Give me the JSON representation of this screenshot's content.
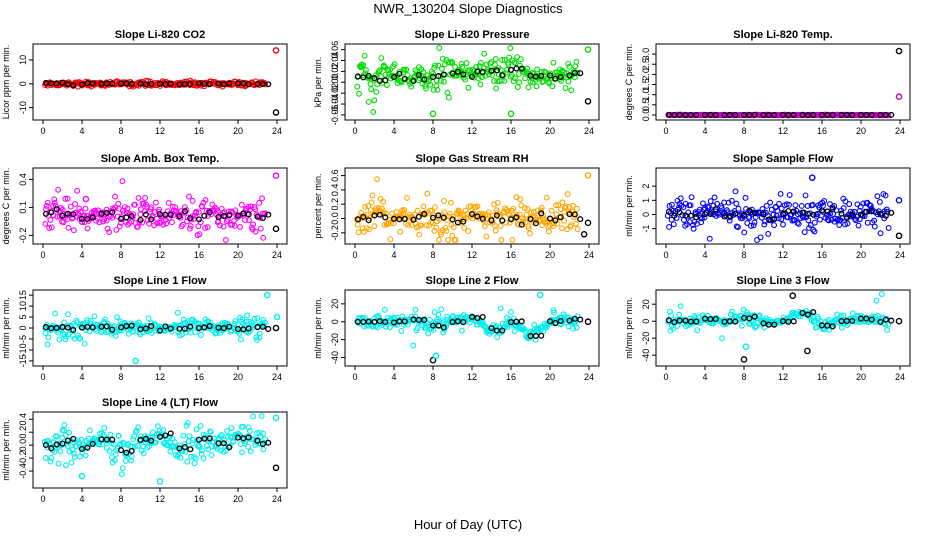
{
  "figure": {
    "title": "NWR_130204  Slope Diagnostics",
    "xlabel": "Hour of Day (UTC)"
  },
  "chart_data": [
    {
      "type": "scatter",
      "title": "Slope Li-820 CO2",
      "ylabel": "Licor ppm per min.",
      "color": "#ff0000",
      "xlim": [
        0,
        24
      ],
      "xticks": [
        0,
        4,
        8,
        12,
        16,
        20,
        24
      ],
      "ylim": [
        -13.5,
        15
      ],
      "yticks": [
        -10,
        0,
        10
      ],
      "ytick_labels": [
        "-10",
        "0",
        "10"
      ],
      "noise": [
        0.5,
        0,
        0,
        0
      ],
      "median_pts": [
        [
          0.3,
          0
        ],
        [
          2,
          0
        ],
        [
          4,
          0
        ],
        [
          6,
          0
        ],
        [
          8,
          0
        ],
        [
          10,
          0
        ],
        [
          12,
          0
        ],
        [
          14,
          0
        ],
        [
          16,
          0
        ],
        [
          18,
          0
        ],
        [
          20,
          0
        ],
        [
          22,
          0
        ]
      ],
      "extremes": [
        {
          "x": 23.9,
          "y": 14,
          "color": "#ff0000"
        },
        {
          "x": 23.9,
          "y": -12,
          "color": "#000000"
        }
      ]
    },
    {
      "type": "scatter",
      "title": "Slope Li-820 Pressure",
      "ylabel": "kPa per min.",
      "color": "#00dd00",
      "xlim": [
        0,
        24
      ],
      "xticks": [
        0,
        4,
        8,
        12,
        16,
        20,
        24
      ],
      "ylim": [
        -0.062,
        0.063
      ],
      "yticks": [
        -0.06,
        -0.04,
        -0.02,
        0,
        0.02,
        0.04,
        0.06
      ],
      "ytick_labels": [
        "-0.06",
        "-0.04",
        "-0.02",
        "0.00",
        "0.02",
        "0.04",
        "0.06"
      ],
      "noise": [
        0.008,
        0.01,
        0.6,
        0.025
      ],
      "median_pts": [
        [
          0.3,
          0.01
        ],
        [
          2,
          0.005
        ],
        [
          4,
          0.01
        ],
        [
          6,
          0.008
        ],
        [
          8,
          0.012
        ],
        [
          10,
          0.02
        ],
        [
          12,
          0.015
        ],
        [
          14,
          0.02
        ],
        [
          16,
          0.025
        ],
        [
          18,
          0.01
        ],
        [
          20,
          0.005
        ],
        [
          22,
          0.015
        ]
      ],
      "extremes": [
        {
          "x": 23.9,
          "y": 0.06,
          "color": "#00dd00"
        },
        {
          "x": 23.9,
          "y": -0.035,
          "color": "#000000"
        },
        {
          "x": 8,
          "y": -0.058,
          "color": "#00dd00"
        },
        {
          "x": 16,
          "y": -0.058,
          "color": "#00dd00"
        }
      ]
    },
    {
      "type": "scatter",
      "title": "Slope Li-820 Temp.",
      "ylabel": "degrees C per min.",
      "color": "#cc00cc",
      "xlim": [
        0,
        24
      ],
      "xticks": [
        0,
        4,
        8,
        12,
        16,
        20,
        24
      ],
      "ylim": [
        -0.05,
        3.3
      ],
      "yticks": [
        0,
        0.5,
        1,
        1.5,
        2,
        2.5,
        3
      ],
      "ytick_labels": [
        "0.0",
        "0.5",
        "1.0",
        "1.5",
        "2.0",
        "2.5",
        "3.0"
      ],
      "noise": [
        0.01,
        0,
        0,
        0
      ],
      "median_pts": [
        [
          0.3,
          0
        ],
        [
          2,
          0
        ],
        [
          4,
          0
        ],
        [
          6,
          0
        ],
        [
          8,
          0
        ],
        [
          10,
          0
        ],
        [
          12,
          0
        ],
        [
          14,
          0
        ],
        [
          16,
          0
        ],
        [
          18,
          0
        ],
        [
          20,
          0
        ],
        [
          22,
          0
        ]
      ],
      "extremes": [
        {
          "x": 23.9,
          "y": 3.15,
          "color": "#000000"
        },
        {
          "x": 23.9,
          "y": 0.9,
          "color": "#cc00cc"
        }
      ]
    },
    {
      "type": "scatter",
      "title": "Slope Amb. Box Temp.",
      "ylabel": "degrees C per min.",
      "color": "#ff00ff",
      "xlim": [
        0,
        24
      ],
      "xticks": [
        0,
        4,
        8,
        12,
        16,
        20,
        24
      ],
      "ylim": [
        -0.25,
        0.48
      ],
      "yticks": [
        -0.2,
        0.1,
        0.4
      ],
      "ytick_labels": [
        "-0.2",
        "0.1",
        "0.4"
      ],
      "noise": [
        0.05,
        0.06,
        0.6,
        0.12
      ],
      "median_pts": [
        [
          0.3,
          0.05
        ],
        [
          2,
          0.02
        ],
        [
          4,
          0.0
        ],
        [
          6,
          0.03
        ],
        [
          8,
          0.01
        ],
        [
          10,
          0.0
        ],
        [
          12,
          0.02
        ],
        [
          14,
          0.01
        ],
        [
          16,
          0.03
        ],
        [
          18,
          0.0
        ],
        [
          20,
          0.02
        ],
        [
          22,
          0.01
        ]
      ],
      "extremes": [
        {
          "x": 23.9,
          "y": 0.44,
          "color": "#ff00ff"
        },
        {
          "x": 23.9,
          "y": -0.13,
          "color": "#000000"
        },
        {
          "x": 4.4,
          "y": 0.19,
          "color": "#ff00ff"
        }
      ]
    },
    {
      "type": "scatter",
      "title": "Slope Gas Stream RH",
      "ylabel": "percent per min.",
      "color": "#ffa500",
      "xlim": [
        0,
        24
      ],
      "xticks": [
        0,
        4,
        8,
        12,
        16,
        20,
        24
      ],
      "ylim": [
        -0.3,
        0.65
      ],
      "yticks": [
        -0.2,
        0,
        0.2,
        0.4,
        0.6
      ],
      "ytick_labels": [
        "-0.2",
        "0.0",
        "0.2",
        "0.4",
        "0.6"
      ],
      "noise": [
        0.08,
        0.08,
        0.6,
        0.15
      ],
      "median_pts": [
        [
          0.3,
          0.02
        ],
        [
          2,
          0.05
        ],
        [
          4,
          0.0
        ],
        [
          6,
          0.03
        ],
        [
          8,
          0.0
        ],
        [
          10,
          -0.02
        ],
        [
          12,
          0.04
        ],
        [
          14,
          0.02
        ],
        [
          16,
          0.0
        ],
        [
          18,
          0.03
        ],
        [
          20,
          0.0
        ],
        [
          22,
          0.04
        ]
      ],
      "extremes": [
        {
          "x": 23.9,
          "y": 0.6,
          "color": "#ffa500"
        },
        {
          "x": 23.9,
          "y": -0.06,
          "color": "#000000"
        },
        {
          "x": 23.5,
          "y": -0.22,
          "color": "#000000"
        }
      ]
    },
    {
      "type": "scatter",
      "title": "Slope Sample Flow",
      "ylabel": "ml/min per min.",
      "color": "#0000ff",
      "xlim": [
        0,
        24
      ],
      "xticks": [
        0,
        4,
        8,
        12,
        16,
        20,
        24
      ],
      "ylim": [
        -1.8,
        3.0
      ],
      "yticks": [
        -1,
        0,
        1,
        2
      ],
      "ytick_labels": [
        "-1",
        "0",
        "1",
        "2"
      ],
      "noise": [
        0.4,
        0.4,
        0.6,
        0.8
      ],
      "median_pts": [
        [
          0.3,
          0.1
        ],
        [
          2,
          -0.1
        ],
        [
          4,
          0.2
        ],
        [
          6,
          0.0
        ],
        [
          8,
          0.1
        ],
        [
          10,
          -0.2
        ],
        [
          12,
          0.1
        ],
        [
          14,
          0.0
        ],
        [
          16,
          0.2
        ],
        [
          18,
          -0.1
        ],
        [
          20,
          0.1
        ],
        [
          22,
          0.0
        ]
      ],
      "extremes": [
        {
          "x": 23.9,
          "y": 1.0,
          "color": "#0000ff"
        },
        {
          "x": 23.9,
          "y": -1.5,
          "color": "#000000"
        },
        {
          "x": 15,
          "y": 2.6,
          "color": "#0000ff"
        }
      ]
    },
    {
      "type": "scatter",
      "title": "Slope Line 1 Flow",
      "ylabel": "ml/min per min.",
      "color": "#00eeee",
      "xlim": [
        0,
        24
      ],
      "xticks": [
        0,
        4,
        8,
        12,
        16,
        20,
        24
      ],
      "ylim": [
        -15.5,
        15.5
      ],
      "yticks": [
        -15,
        -10,
        -5,
        0,
        5,
        10,
        15
      ],
      "ytick_labels": [
        "-15",
        "-10",
        "-5",
        "0",
        "5",
        "10",
        "15"
      ],
      "noise": [
        1.2,
        1.5,
        0.5,
        4
      ],
      "median_pts": [
        [
          0.3,
          0
        ],
        [
          2,
          0
        ],
        [
          4,
          0
        ],
        [
          6,
          0.3
        ],
        [
          8,
          0
        ],
        [
          10,
          0
        ],
        [
          12,
          0
        ],
        [
          14,
          0
        ],
        [
          16,
          0.5
        ],
        [
          18,
          0
        ],
        [
          20,
          0
        ],
        [
          22,
          0
        ]
      ],
      "extremes": [
        {
          "x": 23.9,
          "y": 0,
          "color": "#000000"
        },
        {
          "x": 24,
          "y": 5,
          "color": "#00eeee"
        },
        {
          "x": 9.5,
          "y": -15,
          "color": "#00eeee"
        },
        {
          "x": 23,
          "y": 15,
          "color": "#00eeee"
        }
      ]
    },
    {
      "type": "scatter",
      "title": "Slope Line 2 Flow",
      "ylabel": "ml/min per min.",
      "color": "#00eeee",
      "xlim": [
        0,
        24
      ],
      "xticks": [
        0,
        4,
        8,
        12,
        16,
        20,
        24
      ],
      "ylim": [
        -45,
        31
      ],
      "yticks": [
        -40,
        -20,
        0,
        20
      ],
      "ytick_labels": [
        "-40",
        "-20",
        "0",
        "20"
      ],
      "noise": [
        2,
        2,
        0.7,
        15
      ],
      "median_pts": [
        [
          0.3,
          0
        ],
        [
          2,
          0
        ],
        [
          4,
          0
        ],
        [
          6,
          1
        ],
        [
          8,
          -5
        ],
        [
          10,
          0
        ],
        [
          12,
          5
        ],
        [
          14,
          -10
        ],
        [
          16,
          0
        ],
        [
          18,
          -15
        ],
        [
          20,
          0
        ],
        [
          22,
          2
        ]
      ],
      "extremes": [
        {
          "x": 23.9,
          "y": 0,
          "color": "#000000"
        },
        {
          "x": 8,
          "y": -43,
          "color": "#000000"
        },
        {
          "x": 19,
          "y": 30,
          "color": "#00eeee"
        },
        {
          "x": 8.3,
          "y": -38,
          "color": "#00eeee"
        }
      ]
    },
    {
      "type": "scatter",
      "title": "Slope Line 3 Flow",
      "ylabel": "ml/min per min.",
      "color": "#00eeee",
      "xlim": [
        0,
        24
      ],
      "xticks": [
        0,
        4,
        8,
        12,
        16,
        20,
        24
      ],
      "ylim": [
        -48,
        32
      ],
      "yticks": [
        -40,
        -20,
        0,
        20
      ],
      "ytick_labels": [
        "-40",
        "-20",
        "0",
        "20"
      ],
      "noise": [
        2,
        2,
        0.7,
        14
      ],
      "median_pts": [
        [
          0.3,
          0
        ],
        [
          2,
          0
        ],
        [
          4,
          2
        ],
        [
          6,
          0
        ],
        [
          8,
          5
        ],
        [
          10,
          -3
        ],
        [
          12,
          0
        ],
        [
          14,
          10
        ],
        [
          16,
          -5
        ],
        [
          18,
          0
        ],
        [
          20,
          3
        ],
        [
          22,
          0
        ]
      ],
      "extremes": [
        {
          "x": 23.9,
          "y": 0,
          "color": "#000000"
        },
        {
          "x": 8,
          "y": -45,
          "color": "#000000"
        },
        {
          "x": 13,
          "y": 30,
          "color": "#000000"
        },
        {
          "x": 14.5,
          "y": -35,
          "color": "#000000"
        },
        {
          "x": 8.2,
          "y": -30,
          "color": "#00eeee"
        }
      ]
    },
    {
      "type": "scatter",
      "title": "Slope Line 4 (LT) Flow",
      "ylabel": "ml/min per min.",
      "color": "#00eeee",
      "xlim": [
        0,
        24
      ],
      "xticks": [
        0,
        4,
        8,
        12,
        16,
        20,
        24
      ],
      "ylim": [
        -0.6,
        0.45
      ],
      "yticks": [
        -0.4,
        -0.2,
        0,
        0.2,
        0.4
      ],
      "ytick_labels": [
        "-0.4",
        "-0.2",
        "0.0",
        "0.2",
        "0.4"
      ],
      "noise": [
        0.08,
        0.08,
        0.6,
        0.18
      ],
      "median_pts": [
        [
          0.3,
          0
        ],
        [
          2,
          0.05
        ],
        [
          4,
          -0.02
        ],
        [
          6,
          0.1
        ],
        [
          8,
          -0.1
        ],
        [
          10,
          0.05
        ],
        [
          12,
          0.15
        ],
        [
          14,
          -0.05
        ],
        [
          16,
          0.1
        ],
        [
          18,
          0.0
        ],
        [
          20,
          0.12
        ],
        [
          22,
          0.05
        ]
      ],
      "extremes": [
        {
          "x": 23.9,
          "y": 0.42,
          "color": "#00eeee"
        },
        {
          "x": 23.9,
          "y": -0.35,
          "color": "#000000"
        },
        {
          "x": 12,
          "y": -0.56,
          "color": "#00eeee"
        },
        {
          "x": 4,
          "y": -0.48,
          "color": "#00eeee"
        }
      ]
    }
  ]
}
